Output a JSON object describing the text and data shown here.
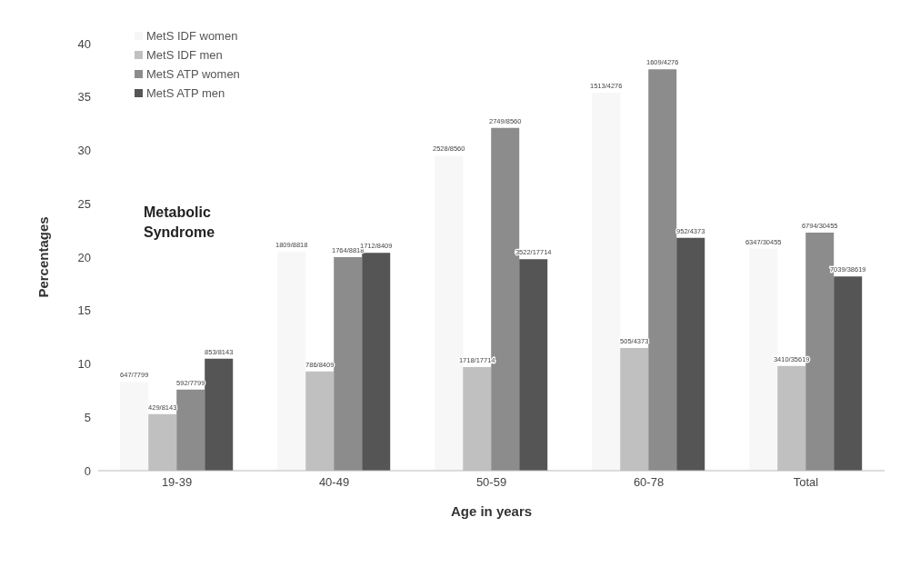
{
  "chart_data": {
    "type": "bar",
    "categories": [
      "19-39",
      "40-49",
      "50-59",
      "60-78",
      "Total"
    ],
    "series": [
      {
        "name": "MetS IDF women",
        "color": "#f7f7f7",
        "values": [
          8.3,
          20.5,
          29.5,
          35.4,
          20.8
        ],
        "value_labels": [
          "647/7799",
          "1809/8818",
          "2528/8560",
          "1513/4276",
          "6347/30455"
        ]
      },
      {
        "name": "MetS IDF men",
        "color": "#c0c0c0",
        "values": [
          5.3,
          9.3,
          9.7,
          11.5,
          9.8
        ],
        "value_labels": [
          "429/8143",
          "786/8409",
          "1718/17714",
          "505/4373",
          "3410/35619"
        ]
      },
      {
        "name": "MetS ATP women",
        "color": "#8c8c8c",
        "values": [
          7.6,
          20.0,
          32.1,
          37.6,
          22.3
        ],
        "value_labels": [
          "592/7799",
          "1764/8818",
          "2749/8560",
          "1609/4276",
          "6794/30455"
        ]
      },
      {
        "name": "MetS ATP men",
        "color": "#555555",
        "values": [
          10.5,
          20.4,
          19.8,
          21.8,
          18.2
        ],
        "value_labels": [
          "853/8143",
          "1712/8409",
          "3522/17714",
          "952/4373",
          "7039/38619"
        ]
      }
    ],
    "xlabel": "Age in years",
    "ylabel": "Percentages",
    "ylim": [
      0,
      40
    ],
    "yticks": [
      0,
      5,
      10,
      15,
      20,
      25,
      30,
      35,
      40
    ],
    "grid": false,
    "legend": "top left",
    "annotations": [
      "Metabolic Syndrome"
    ]
  }
}
